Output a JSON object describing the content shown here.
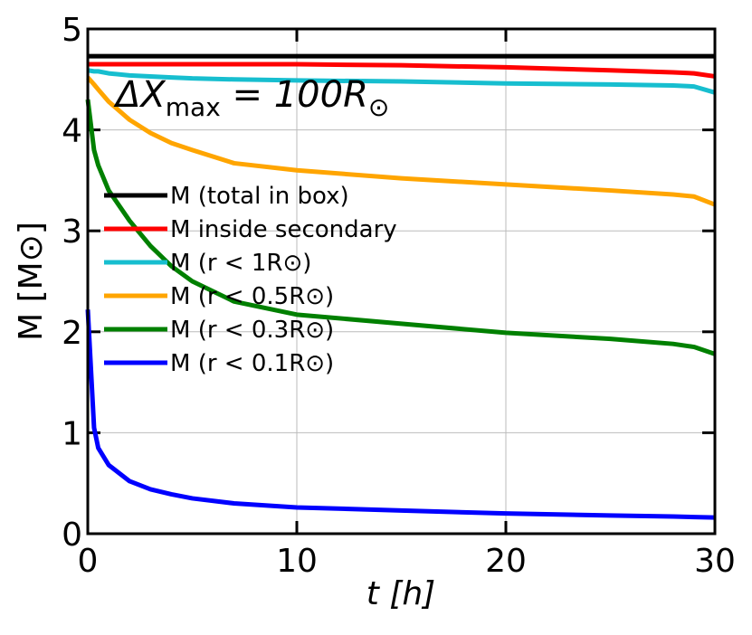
{
  "chart_data": {
    "type": "line",
    "annotation": [
      {
        "text": "ΔX"
      },
      {
        "text": "max",
        "sub": true
      },
      {
        "text": " = 100R"
      },
      {
        "text": "⊙",
        "sub": true
      }
    ],
    "xlabel": "t [h]",
    "ylabel": "M [M⊙]",
    "x": [
      0,
      0.3,
      0.5,
      1,
      2,
      3,
      4,
      5,
      7,
      10,
      15,
      20,
      25,
      28,
      29,
      30
    ],
    "series": [
      {
        "name": "M (total in box)",
        "color": "#000000",
        "values": [
          4.73,
          4.73,
          4.73,
          4.73,
          4.73,
          4.73,
          4.73,
          4.73,
          4.73,
          4.73,
          4.73,
          4.73,
          4.73,
          4.73,
          4.73,
          4.73
        ]
      },
      {
        "name": "M inside secondary",
        "color": "#ff0000",
        "values": [
          4.65,
          4.65,
          4.65,
          4.65,
          4.65,
          4.65,
          4.65,
          4.65,
          4.65,
          4.65,
          4.64,
          4.62,
          4.59,
          4.57,
          4.56,
          4.53
        ]
      },
      {
        "name": "M (r < 1R⊙)",
        "color": "#17becf",
        "values": [
          4.59,
          4.58,
          4.58,
          4.56,
          4.54,
          4.53,
          4.52,
          4.51,
          4.5,
          4.49,
          4.48,
          4.46,
          4.45,
          4.44,
          4.43,
          4.37
        ]
      },
      {
        "name": "M (r < 0.5R⊙)",
        "color": "#ffa500",
        "values": [
          4.52,
          4.45,
          4.4,
          4.28,
          4.1,
          3.97,
          3.87,
          3.8,
          3.67,
          3.6,
          3.52,
          3.46,
          3.4,
          3.36,
          3.34,
          3.26
        ]
      },
      {
        "name": "M (r < 0.3R⊙)",
        "color": "#008000",
        "values": [
          4.3,
          3.8,
          3.65,
          3.4,
          3.1,
          2.85,
          2.65,
          2.5,
          2.3,
          2.17,
          2.08,
          1.99,
          1.93,
          1.88,
          1.85,
          1.78
        ]
      },
      {
        "name": "M (r < 0.1R⊙)",
        "color": "#0000ff",
        "values": [
          2.22,
          1.05,
          0.85,
          0.68,
          0.52,
          0.44,
          0.39,
          0.35,
          0.3,
          0.26,
          0.23,
          0.2,
          0.18,
          0.17,
          0.165,
          0.16
        ]
      }
    ],
    "xlim": [
      0,
      30
    ],
    "xticks": [
      0,
      10,
      20,
      30
    ],
    "ylim": [
      0,
      5
    ],
    "yticks": [
      0,
      1,
      2,
      3,
      4,
      5
    ],
    "grid": true,
    "legend": "left"
  }
}
